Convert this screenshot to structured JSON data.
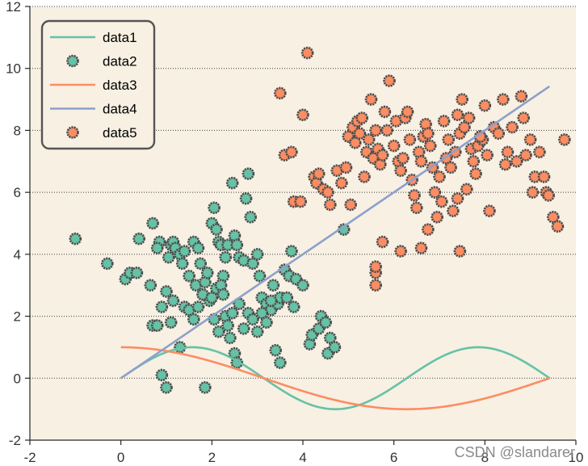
{
  "chart_data": {
    "type": "scatter",
    "title": "",
    "xlabel": "",
    "ylabel": "",
    "xlim": [
      -2,
      10
    ],
    "ylim": [
      -2,
      12
    ],
    "xticks": [
      -2,
      0,
      2,
      4,
      6,
      8,
      10
    ],
    "yticks": [
      -2,
      0,
      2,
      4,
      6,
      8,
      10,
      12
    ],
    "grid": "horizontal dotted",
    "legend_position": "top-left",
    "series": [
      {
        "name": "data1",
        "kind": "line",
        "function": "sin(x) for x in [0, 3*pi]",
        "color": "#66c2a5"
      },
      {
        "name": "data2",
        "kind": "scatter",
        "color": "#66c2a5",
        "edgecolor": "#4d4d4d",
        "points": [
          [
            -1.0,
            4.5
          ],
          [
            -0.3,
            3.7
          ],
          [
            0.1,
            3.2
          ],
          [
            0.2,
            3.4
          ],
          [
            0.35,
            3.4
          ],
          [
            0.4,
            4.5
          ],
          [
            0.65,
            3.0
          ],
          [
            0.7,
            5.0
          ],
          [
            0.85,
            4.4
          ],
          [
            0.8,
            4.2
          ],
          [
            0.9,
            2.3
          ],
          [
            1.0,
            2.8
          ],
          [
            1.05,
            3.9
          ],
          [
            1.1,
            4.3
          ],
          [
            1.15,
            4.4
          ],
          [
            1.2,
            4.2
          ],
          [
            1.3,
            4.0
          ],
          [
            1.35,
            3.7
          ],
          [
            1.4,
            4.1
          ],
          [
            1.5,
            3.3
          ],
          [
            1.6,
            4.4
          ],
          [
            1.65,
            3.0
          ],
          [
            1.7,
            4.2
          ],
          [
            1.75,
            3.7
          ],
          [
            1.8,
            2.7
          ],
          [
            1.85,
            3.1
          ],
          [
            1.9,
            3.4
          ],
          [
            1.95,
            2.5
          ],
          [
            2.0,
            5.0
          ],
          [
            2.05,
            5.5
          ],
          [
            2.1,
            4.8
          ],
          [
            2.15,
            4.4
          ],
          [
            2.2,
            4.3
          ],
          [
            2.25,
            3.3
          ],
          [
            2.3,
            3.9
          ],
          [
            2.35,
            4.3
          ],
          [
            2.45,
            6.3
          ],
          [
            2.5,
            4.6
          ],
          [
            2.55,
            4.3
          ],
          [
            2.6,
            3.9
          ],
          [
            2.7,
            3.8
          ],
          [
            2.75,
            5.8
          ],
          [
            2.8,
            6.6
          ],
          [
            2.85,
            5.2
          ],
          [
            2.9,
            3.7
          ],
          [
            3.0,
            4.0
          ],
          [
            3.05,
            3.3
          ],
          [
            3.1,
            2.6
          ],
          [
            3.2,
            2.4
          ],
          [
            3.3,
            2.2
          ],
          [
            3.35,
            3.0
          ],
          [
            3.45,
            2.4
          ],
          [
            3.5,
            2.6
          ],
          [
            3.6,
            3.5
          ],
          [
            3.65,
            2.6
          ],
          [
            3.7,
            3.3
          ],
          [
            3.75,
            4.1
          ],
          [
            3.8,
            2.3
          ],
          [
            3.85,
            3.2
          ],
          [
            4.0,
            3.0
          ],
          [
            4.15,
            1.1
          ],
          [
            4.2,
            1.4
          ],
          [
            4.35,
            1.6
          ],
          [
            4.4,
            2.0
          ],
          [
            4.5,
            1.8
          ],
          [
            4.55,
            0.8
          ],
          [
            4.6,
            1.3
          ],
          [
            4.7,
            1.0
          ],
          [
            4.9,
            4.8
          ],
          [
            0.7,
            1.7
          ],
          [
            0.8,
            1.7
          ],
          [
            0.9,
            0.1
          ],
          [
            1.0,
            -0.3
          ],
          [
            1.1,
            1.8
          ],
          [
            1.15,
            2.5
          ],
          [
            1.3,
            1.0
          ],
          [
            1.4,
            2.3
          ],
          [
            1.5,
            2.2
          ],
          [
            1.6,
            1.9
          ],
          [
            1.7,
            2.3
          ],
          [
            1.8,
            2.7
          ],
          [
            1.85,
            -0.3
          ],
          [
            2.0,
            2.6
          ],
          [
            2.05,
            1.9
          ],
          [
            2.1,
            2.9
          ],
          [
            2.15,
            1.5
          ],
          [
            2.2,
            3.0
          ],
          [
            2.25,
            2.7
          ],
          [
            2.3,
            2.0
          ],
          [
            2.35,
            1.7
          ],
          [
            2.4,
            1.3
          ],
          [
            2.45,
            2.1
          ],
          [
            2.5,
            0.8
          ],
          [
            2.55,
            0.5
          ],
          [
            2.6,
            2.4
          ],
          [
            2.7,
            1.6
          ],
          [
            2.8,
            2.1
          ],
          [
            2.9,
            1.9
          ],
          [
            3.0,
            1.5
          ],
          [
            3.1,
            2.1
          ],
          [
            3.2,
            1.8
          ],
          [
            3.3,
            2.5
          ],
          [
            3.4,
            0.9
          ],
          [
            3.5,
            0.5
          ]
        ]
      },
      {
        "name": "data3",
        "kind": "line",
        "function": "cos(x/2) for x in [0, 3*pi]",
        "color": "#fc8d62"
      },
      {
        "name": "data4",
        "kind": "line",
        "points": [
          [
            0,
            0
          ],
          [
            9.42,
            9.42
          ]
        ],
        "color": "#8da0cb"
      },
      {
        "name": "data5",
        "kind": "scatter",
        "color": "#fc8d62",
        "edgecolor": "#4d4d4d",
        "points": [
          [
            3.5,
            9.2
          ],
          [
            3.6,
            7.2
          ],
          [
            3.75,
            7.3
          ],
          [
            3.8,
            5.7
          ],
          [
            3.95,
            5.7
          ],
          [
            4.0,
            8.5
          ],
          [
            4.1,
            10.5
          ],
          [
            4.25,
            6.5
          ],
          [
            4.3,
            6.3
          ],
          [
            4.35,
            6.6
          ],
          [
            4.45,
            6.1
          ],
          [
            4.55,
            6.0
          ],
          [
            4.6,
            5.6
          ],
          [
            4.75,
            6.7
          ],
          [
            4.85,
            6.3
          ],
          [
            4.95,
            6.8
          ],
          [
            5.0,
            7.8
          ],
          [
            5.05,
            5.6
          ],
          [
            5.1,
            8.1
          ],
          [
            5.15,
            7.6
          ],
          [
            5.2,
            8.3
          ],
          [
            5.25,
            7.9
          ],
          [
            5.3,
            8.4
          ],
          [
            5.35,
            6.5
          ],
          [
            5.4,
            7.3
          ],
          [
            5.45,
            7.7
          ],
          [
            5.5,
            9.0
          ],
          [
            5.55,
            7.1
          ],
          [
            5.6,
            8.0
          ],
          [
            5.65,
            7.4
          ],
          [
            5.7,
            6.9
          ],
          [
            5.75,
            7.2
          ],
          [
            5.8,
            8.6
          ],
          [
            5.85,
            8.0
          ],
          [
            5.9,
            9.6
          ],
          [
            6.0,
            7.5
          ],
          [
            6.05,
            8.3
          ],
          [
            6.1,
            7.0
          ],
          [
            6.15,
            6.7
          ],
          [
            6.2,
            7.1
          ],
          [
            6.25,
            8.4
          ],
          [
            6.3,
            8.6
          ],
          [
            6.35,
            7.7
          ],
          [
            6.4,
            6.4
          ],
          [
            6.45,
            5.9
          ],
          [
            6.5,
            5.5
          ],
          [
            6.55,
            7.3
          ],
          [
            6.6,
            7.0
          ],
          [
            6.65,
            7.8
          ],
          [
            6.7,
            8.2
          ],
          [
            6.75,
            7.9
          ],
          [
            6.8,
            7.5
          ],
          [
            6.85,
            6.8
          ],
          [
            6.9,
            6.0
          ],
          [
            6.95,
            5.2
          ],
          [
            7.0,
            6.5
          ],
          [
            7.05,
            5.7
          ],
          [
            7.1,
            8.3
          ],
          [
            7.15,
            7.1
          ],
          [
            7.2,
            7.7
          ],
          [
            7.25,
            6.8
          ],
          [
            7.3,
            5.4
          ],
          [
            7.35,
            7.3
          ],
          [
            7.4,
            8.5
          ],
          [
            7.45,
            7.9
          ],
          [
            7.5,
            9.0
          ],
          [
            7.55,
            8.1
          ],
          [
            7.6,
            6.1
          ],
          [
            7.65,
            8.4
          ],
          [
            7.7,
            7.4
          ],
          [
            7.75,
            7.0
          ],
          [
            7.8,
            6.6
          ],
          [
            7.85,
            7.5
          ],
          [
            7.9,
            7.8
          ],
          [
            7.95,
            7.7
          ],
          [
            8.0,
            8.8
          ],
          [
            8.05,
            7.2
          ],
          [
            8.1,
            5.4
          ],
          [
            8.2,
            8.1
          ],
          [
            8.3,
            7.9
          ],
          [
            8.4,
            9.0
          ],
          [
            8.45,
            6.9
          ],
          [
            8.5,
            7.3
          ],
          [
            8.6,
            8.1
          ],
          [
            8.7,
            7.0
          ],
          [
            8.8,
            9.1
          ],
          [
            8.85,
            8.4
          ],
          [
            8.9,
            7.2
          ],
          [
            9.0,
            7.7
          ],
          [
            9.05,
            6.0
          ],
          [
            9.1,
            6.5
          ],
          [
            9.2,
            7.3
          ],
          [
            9.3,
            6.5
          ],
          [
            9.35,
            6.0
          ],
          [
            9.4,
            5.9
          ],
          [
            9.5,
            5.2
          ],
          [
            9.6,
            4.9
          ],
          [
            9.75,
            7.7
          ],
          [
            5.6,
            3.4
          ],
          [
            5.6,
            3.6
          ],
          [
            5.6,
            3.0
          ],
          [
            5.75,
            4.4
          ],
          [
            6.15,
            4.1
          ],
          [
            6.6,
            4.2
          ],
          [
            6.75,
            4.8
          ],
          [
            7.4,
            5.8
          ],
          [
            7.45,
            4.1
          ],
          [
            7.9,
            7.8
          ]
        ]
      }
    ]
  },
  "legend": {
    "items": [
      {
        "label": "data1",
        "kind": "line",
        "color": "#66c2a5"
      },
      {
        "label": "data2",
        "kind": "marker",
        "color": "#66c2a5"
      },
      {
        "label": "data3",
        "kind": "line",
        "color": "#fc8d62"
      },
      {
        "label": "data4",
        "kind": "line",
        "color": "#8da0cb"
      },
      {
        "label": "data5",
        "kind": "marker",
        "color": "#fc8d62"
      }
    ]
  },
  "colors": {
    "plot_background": "#f7f0e3",
    "axis": "#262626",
    "grid": "#404040",
    "marker_edge": "#4d4d4d"
  },
  "watermark": "CSDN @slandarer"
}
